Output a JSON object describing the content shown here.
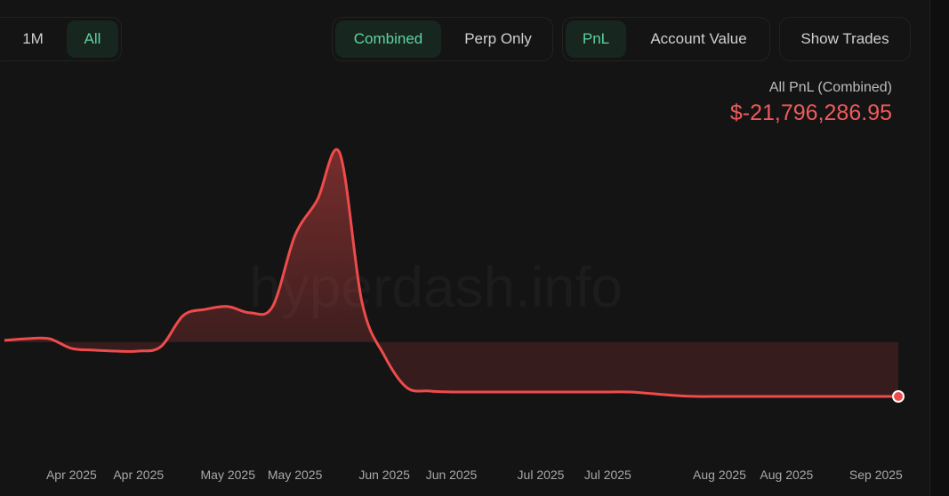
{
  "controls": {
    "range": [
      "1M",
      "All"
    ],
    "mode": [
      "Combined",
      "Perp Only"
    ],
    "metric": [
      "PnL",
      "Account Value"
    ],
    "trades": "Show Trades"
  },
  "chart_data": {
    "type": "line",
    "summary_label": "All PnL (Combined)",
    "last_value_label": "$-21,796,286.95",
    "watermark": "hyperdash.info",
    "color": "#ef4b4b",
    "categories": [
      null,
      null,
      null,
      "Apr 2025",
      null,
      null,
      "Apr 2025",
      null,
      null,
      null,
      "May 2025",
      null,
      null,
      "May 2025",
      null,
      null,
      null,
      "Jun 2025",
      null,
      null,
      "Jun 2025",
      null,
      null,
      null,
      "Jul 2025",
      null,
      null,
      "Jul 2025",
      null,
      null,
      null,
      null,
      "Aug 2025",
      null,
      null,
      "Aug 2025",
      null,
      null,
      null,
      "Sep 2025",
      null
    ],
    "values": [
      700000,
      1400000,
      1400000,
      -2500000,
      -3200000,
      -3600000,
      -3600000,
      -1800000,
      10700000,
      13200000,
      14300000,
      11800000,
      14300000,
      42800000,
      57100000,
      76000000,
      16000000,
      -5400000,
      -18200000,
      -19600000,
      -20000000,
      -20000000,
      -20000000,
      -20000000,
      -20000000,
      -20000000,
      -20000000,
      -20000000,
      -20000000,
      -20700000,
      -21400000,
      -21800000,
      -21800000,
      -21800000,
      -21800000,
      -21800000,
      -21800000,
      -21800000,
      -21800000,
      -21800000,
      -21796286.95
    ]
  }
}
